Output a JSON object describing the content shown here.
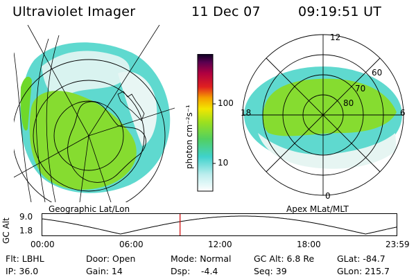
{
  "header": {
    "instrument": "Ultraviolet Imager",
    "date": "11 Dec 07",
    "time": "09:19:51 UT"
  },
  "left_panel": {
    "caption": "Geographic Lat/Lon"
  },
  "right_panel": {
    "caption": "Apex MLat/MLT",
    "mlt_labels": [
      "12",
      "18",
      "6",
      "0"
    ],
    "lat_labels": [
      "60",
      "70",
      "80"
    ]
  },
  "colorbar": {
    "unit_text": "photon cm⁻²s⁻¹",
    "ticks": [
      "100",
      "10"
    ]
  },
  "altitude_plot": {
    "ylabel": "GC Alt",
    "yticks": [
      "9.0",
      "1.8"
    ],
    "xticks": [
      "00:00",
      "06:00",
      "12:00",
      "18:00",
      "23:59"
    ],
    "marker_hour": 9.33
  },
  "info": {
    "row1": {
      "flt": "Flt: LBHL",
      "door": "Door: Open",
      "mode": "Mode: Normal",
      "gc_alt": "GC Alt: 6.8 Re",
      "glat": "GLat: -84.7"
    },
    "row2": {
      "ip": "IP: 36.0",
      "gain": "Gain: 14",
      "dsp_label": "Dsp:",
      "dsp_value": "-4.4",
      "seq": "Seq: 39",
      "glon": "GLon: 215.7"
    }
  },
  "colors": {
    "marker": "#d00000",
    "aurora_green": "#7fdc2a",
    "aurora_cyan": "#4fd6d0"
  }
}
